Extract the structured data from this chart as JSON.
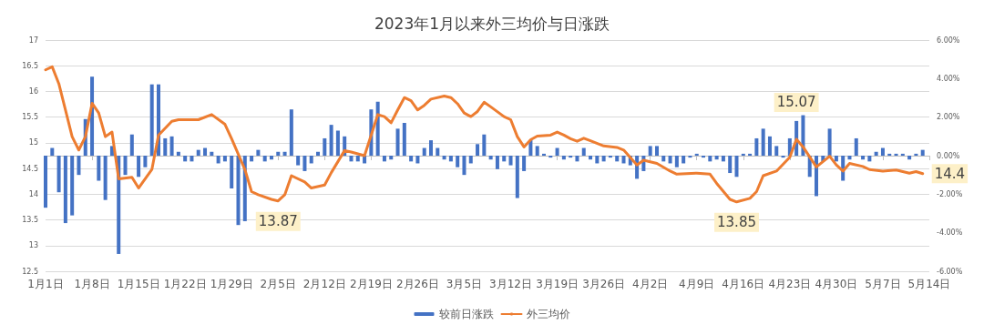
{
  "chart_data": {
    "type": "bar",
    "title": "2023年1月以来外三均价与日涨跌",
    "x": [
      "2023-01-01",
      "2023-01-02",
      "2023-01-03",
      "2023-01-04",
      "2023-01-05",
      "2023-01-06",
      "2023-01-07",
      "2023-01-08",
      "2023-01-09",
      "2023-01-10",
      "2023-01-11",
      "2023-01-12",
      "2023-01-13",
      "2023-01-14",
      "2023-01-15",
      "2023-01-16",
      "2023-01-17",
      "2023-01-18",
      "2023-01-19",
      "2023-01-20",
      "2023-01-21",
      "2023-01-22",
      "2023-01-23",
      "2023-01-24",
      "2023-01-25",
      "2023-01-26",
      "2023-01-27",
      "2023-01-28",
      "2023-01-29",
      "2023-01-30",
      "2023-01-31",
      "2023-02-01",
      "2023-02-02",
      "2023-02-03",
      "2023-02-04",
      "2023-02-05",
      "2023-02-06",
      "2023-02-07",
      "2023-02-08",
      "2023-02-09",
      "2023-02-10",
      "2023-02-11",
      "2023-02-12",
      "2023-02-13",
      "2023-02-14",
      "2023-02-15",
      "2023-02-16",
      "2023-02-17",
      "2023-02-18",
      "2023-02-19",
      "2023-02-20",
      "2023-02-21",
      "2023-02-22",
      "2023-02-23",
      "2023-02-24",
      "2023-02-25",
      "2023-02-26",
      "2023-02-27",
      "2023-02-28",
      "2023-03-01",
      "2023-03-02",
      "2023-03-03",
      "2023-03-04",
      "2023-03-05",
      "2023-03-06",
      "2023-03-07",
      "2023-03-08",
      "2023-03-09",
      "2023-03-10",
      "2023-03-11",
      "2023-03-12",
      "2023-03-13",
      "2023-03-14",
      "2023-03-15",
      "2023-03-16",
      "2023-03-17",
      "2023-03-18",
      "2023-03-19",
      "2023-03-20",
      "2023-03-21",
      "2023-03-22",
      "2023-03-23",
      "2023-03-24",
      "2023-03-25",
      "2023-03-26",
      "2023-03-27",
      "2023-03-28",
      "2023-03-29",
      "2023-03-30",
      "2023-03-31",
      "2023-04-01",
      "2023-04-02",
      "2023-04-03",
      "2023-04-04",
      "2023-04-05",
      "2023-04-06",
      "2023-04-07",
      "2023-04-08",
      "2023-04-09",
      "2023-04-10",
      "2023-04-11",
      "2023-04-12",
      "2023-04-13",
      "2023-04-14",
      "2023-04-15",
      "2023-04-16",
      "2023-04-17",
      "2023-04-18",
      "2023-04-19",
      "2023-04-20",
      "2023-04-21",
      "2023-04-22",
      "2023-04-23",
      "2023-04-24",
      "2023-04-25",
      "2023-04-26",
      "2023-04-27",
      "2023-04-28",
      "2023-04-29",
      "2023-04-30",
      "2023-05-01",
      "2023-05-02",
      "2023-05-03",
      "2023-05-04",
      "2023-05-05",
      "2023-05-06",
      "2023-05-07",
      "2023-05-08",
      "2023-05-09",
      "2023-05-10",
      "2023-05-11",
      "2023-05-12",
      "2023-05-13"
    ],
    "series": [
      {
        "name": "较前日涨跌",
        "axis": "y2",
        "color": "#4472c4",
        "values": [
          -2.7,
          0.4,
          -1.9,
          -3.5,
          -3.1,
          -1.0,
          1.9,
          4.1,
          -1.3,
          -2.3,
          0.5,
          -5.1,
          -1.0,
          1.1,
          -1.1,
          -0.6,
          3.7,
          3.7,
          0.9,
          1.0,
          0.2,
          -0.3,
          -0.3,
          0.3,
          0.4,
          0.2,
          -0.4,
          -0.3,
          -1.7,
          -3.6,
          -3.4,
          -0.3,
          0.3,
          -0.3,
          -0.2,
          0.2,
          0.2,
          2.4,
          -0.5,
          -0.8,
          -0.4,
          0.2,
          0.9,
          1.6,
          1.3,
          1.0,
          -0.3,
          -0.3,
          -0.4,
          2.4,
          2.8,
          -0.3,
          -0.2,
          1.4,
          1.7,
          -0.3,
          -0.4,
          0.4,
          0.8,
          0.4,
          -0.2,
          -0.3,
          -0.6,
          -1.0,
          -0.4,
          0.6,
          1.1,
          -0.2,
          -0.7,
          -0.3,
          -0.5,
          -2.2,
          -0.8,
          0.8,
          0.5,
          0.1,
          -0.1,
          0.4,
          -0.2,
          -0.1,
          -0.3,
          0.4,
          -0.2,
          -0.4,
          -0.3,
          -0.1,
          -0.3,
          -0.4,
          -0.5,
          -1.2,
          -0.8,
          0.5,
          0.5,
          -0.3,
          -0.4,
          -0.6,
          -0.4,
          -0.1,
          0.1,
          -0.1,
          -0.3,
          -0.2,
          -0.3,
          -0.9,
          -1.1,
          0.1,
          0.1,
          0.9,
          1.4,
          1.0,
          0.5,
          -0.1,
          0.9,
          1.8,
          2.1,
          -1.1,
          -2.1,
          -0.3,
          1.4,
          -0.3,
          -1.3,
          -0.2,
          0.9,
          -0.2,
          -0.3,
          0.2,
          0.4,
          0.1,
          0.1,
          0.1,
          -0.2,
          0.1,
          0.3
        ]
      },
      {
        "name": "外三均价",
        "type": "line",
        "color": "#ed7d31",
        "x": [
          "2023-01-01",
          "2023-01-02",
          "2023-01-03",
          "2023-01-04",
          "2023-01-05",
          "2023-01-06",
          "2023-01-07",
          "2023-01-08",
          "2023-01-09",
          "2023-01-10",
          "2023-01-11",
          "2023-01-12",
          "2023-01-14",
          "2023-01-15",
          "2023-01-17",
          "2023-01-18",
          "2023-01-20",
          "2023-01-21",
          "2023-01-24",
          "2023-01-26",
          "2023-01-28",
          "2023-01-29",
          "2023-01-31",
          "2023-02-01",
          "2023-02-02",
          "2023-02-04",
          "2023-02-05",
          "2023-02-06",
          "2023-02-07",
          "2023-02-09",
          "2023-02-10",
          "2023-02-12",
          "2023-02-13",
          "2023-02-15",
          "2023-02-16",
          "2023-02-18",
          "2023-02-19",
          "2023-02-20",
          "2023-02-21",
          "2023-02-22",
          "2023-02-23",
          "2023-02-24",
          "2023-02-25",
          "2023-02-26",
          "2023-02-27",
          "2023-02-28",
          "2023-03-02",
          "2023-03-03",
          "2023-03-04",
          "2023-03-05",
          "2023-03-06",
          "2023-03-07",
          "2023-03-08",
          "2023-03-09",
          "2023-03-11",
          "2023-03-12",
          "2023-03-13",
          "2023-03-14",
          "2023-03-15",
          "2023-03-16",
          "2023-03-18",
          "2023-03-19",
          "2023-03-20",
          "2023-03-21",
          "2023-03-22",
          "2023-03-23",
          "2023-03-24",
          "2023-03-26",
          "2023-03-28",
          "2023-03-29",
          "2023-03-31",
          "2023-04-01",
          "2023-04-03",
          "2023-04-05",
          "2023-04-06",
          "2023-04-09",
          "2023-04-11",
          "2023-04-12",
          "2023-04-14",
          "2023-04-15",
          "2023-04-17",
          "2023-04-18",
          "2023-04-19",
          "2023-04-21",
          "2023-04-23",
          "2023-04-24",
          "2023-04-25",
          "2023-04-27",
          "2023-04-29",
          "2023-04-30",
          "2023-05-01",
          "2023-05-02",
          "2023-05-04",
          "2023-05-05",
          "2023-05-07",
          "2023-05-09",
          "2023-05-11",
          "2023-05-12",
          "2023-05-13"
        ],
        "values": [
          16.42,
          16.48,
          16.15,
          15.64,
          15.12,
          14.86,
          15.12,
          15.77,
          15.58,
          15.12,
          15.21,
          14.3,
          14.33,
          14.12,
          14.48,
          15.15,
          15.42,
          15.45,
          15.45,
          15.55,
          15.36,
          15.08,
          14.48,
          14.05,
          13.99,
          13.9,
          13.87,
          13.99,
          14.36,
          14.24,
          14.12,
          14.18,
          14.42,
          14.85,
          14.82,
          14.75,
          15.15,
          15.55,
          15.51,
          15.39,
          15.64,
          15.88,
          15.82,
          15.64,
          15.73,
          15.85,
          15.91,
          15.88,
          15.76,
          15.58,
          15.51,
          15.61,
          15.79,
          15.7,
          15.51,
          15.45,
          15.12,
          14.92,
          15.06,
          15.13,
          15.15,
          15.21,
          15.15,
          15.08,
          15.03,
          15.09,
          15.04,
          14.94,
          14.91,
          14.86,
          14.57,
          14.66,
          14.6,
          14.45,
          14.39,
          14.41,
          14.39,
          14.21,
          13.9,
          13.85,
          13.92,
          14.05,
          14.36,
          14.45,
          14.72,
          15.07,
          14.92,
          14.53,
          14.74,
          14.57,
          14.45,
          14.6,
          14.54,
          14.48,
          14.45,
          14.47,
          14.41,
          14.44,
          14.4
        ],
        "value_labels": [
          null,
          null,
          null,
          null,
          null,
          null,
          null,
          null,
          null,
          null,
          null,
          null,
          null,
          null,
          null,
          null,
          null,
          null,
          null,
          null,
          null,
          null,
          null,
          null,
          null,
          null,
          "13.87",
          null,
          null,
          null,
          null,
          null,
          null,
          null,
          null,
          null,
          null,
          null,
          null,
          null,
          null,
          null,
          null,
          null,
          null,
          null,
          null,
          null,
          null,
          null,
          null,
          null,
          null,
          null,
          null,
          null,
          null,
          null,
          null,
          null,
          null,
          null,
          null,
          null,
          null,
          null,
          null,
          null,
          null,
          null,
          null,
          null,
          null,
          null,
          null,
          null,
          null,
          null,
          null,
          "13.85",
          null,
          null,
          null,
          null,
          null,
          "15.07",
          null,
          null,
          null,
          null,
          null,
          null,
          null,
          null,
          null,
          null,
          null,
          null,
          "14.4"
        ]
      }
    ],
    "xlim": [
      "2023-01-01",
      "2023-05-14"
    ],
    "xticks": [
      {
        "value": "2023-01-01",
        "label": "1月1日"
      },
      {
        "value": "2023-01-08",
        "label": "1月8日"
      },
      {
        "value": "2023-01-15",
        "label": "1月15日"
      },
      {
        "value": "2023-01-22",
        "label": "1月22日"
      },
      {
        "value": "2023-01-29",
        "label": "1月29日"
      },
      {
        "value": "2023-02-05",
        "label": "2月5日"
      },
      {
        "value": "2023-02-12",
        "label": "2月12日"
      },
      {
        "value": "2023-02-19",
        "label": "2月19日"
      },
      {
        "value": "2023-02-26",
        "label": "2月26日"
      },
      {
        "value": "2023-03-05",
        "label": "3月5日"
      },
      {
        "value": "2023-03-12",
        "label": "3月12日"
      },
      {
        "value": "2023-03-19",
        "label": "3月19日"
      },
      {
        "value": "2023-03-26",
        "label": "3月26日"
      },
      {
        "value": "2023-04-02",
        "label": "4月2日"
      },
      {
        "value": "2023-04-09",
        "label": "4月9日"
      },
      {
        "value": "2023-04-16",
        "label": "4月16日"
      },
      {
        "value": "2023-04-23",
        "label": "4月23日"
      },
      {
        "value": "2023-04-30",
        "label": "4月30日"
      },
      {
        "value": "2023-05-07",
        "label": "5月7日"
      },
      {
        "value": "2023-05-14",
        "label": "5月14日"
      }
    ],
    "ylim": [
      12.5,
      17
    ],
    "yticks": [
      12.5,
      13,
      13.5,
      14,
      14.5,
      15,
      15.5,
      16,
      16.5,
      17
    ],
    "y2lim": [
      -6,
      6
    ],
    "y2ticks": [
      {
        "value": -6,
        "label": "-6.00%"
      },
      {
        "value": -4,
        "label": "-4.00%"
      },
      {
        "value": -2,
        "label": "-2.00%"
      },
      {
        "value": 0,
        "label": "0.00%"
      },
      {
        "value": 2,
        "label": "2.00%"
      },
      {
        "value": 4,
        "label": "4.00%"
      },
      {
        "value": 6,
        "label": "6.00%"
      }
    ],
    "grid": "y",
    "legend": "bottom",
    "marker": "none",
    "line_style": "solid"
  }
}
